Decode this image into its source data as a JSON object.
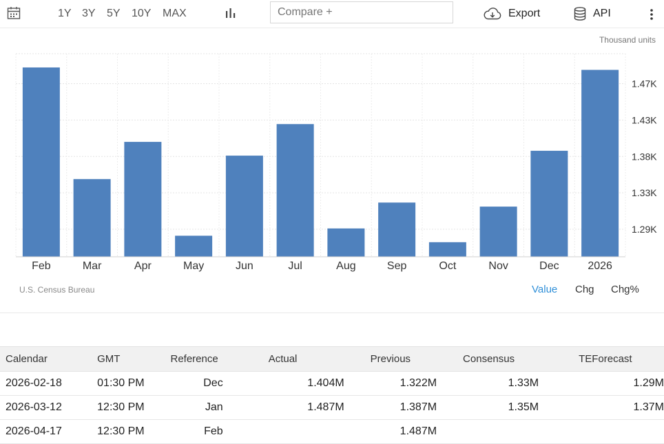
{
  "toolbar": {
    "ranges": [
      "1Y",
      "3Y",
      "5Y",
      "10Y",
      "MAX"
    ],
    "compare_placeholder": "Compare +",
    "export_label": "Export",
    "api_label": "API"
  },
  "units_label": "Thousand units",
  "source_label": "U.S. Census Bureau",
  "value_tabs": [
    "Value",
    "Chg",
    "Chg%"
  ],
  "active_tab_color": "#2f8fd8",
  "chart_data": {
    "type": "bar",
    "categories": [
      "Feb",
      "Mar",
      "Apr",
      "May",
      "Jun",
      "Jul",
      "Aug",
      "Sep",
      "Oct",
      "Nov",
      "Dec",
      "2026"
    ],
    "values": [
      1.49,
      1.352,
      1.398,
      1.282,
      1.381,
      1.42,
      1.291,
      1.323,
      1.274,
      1.318,
      1.387,
      1.487
    ],
    "yticks": [
      "1.29K",
      "1.33K",
      "1.38K",
      "1.43K",
      "1.47K"
    ],
    "ytick_values": [
      1.29,
      1.335,
      1.38,
      1.425,
      1.47
    ],
    "ylim": [
      1.256,
      1.507
    ],
    "bar_color": "#4f81bd",
    "grid": true
  },
  "calendar": {
    "headers": [
      "Calendar",
      "GMT",
      "Reference",
      "Actual",
      "Previous",
      "Consensus",
      "TEForecast"
    ],
    "rows": [
      [
        "2026-02-18",
        "01:30 PM",
        "Dec",
        "1.404M",
        "1.322M",
        "1.33M",
        "1.29M"
      ],
      [
        "2026-03-12",
        "12:30 PM",
        "Jan",
        "1.487M",
        "1.387M",
        "1.35M",
        "1.37M"
      ],
      [
        "2026-04-17",
        "12:30 PM",
        "Feb",
        "",
        "1.487M",
        "",
        ""
      ]
    ]
  }
}
